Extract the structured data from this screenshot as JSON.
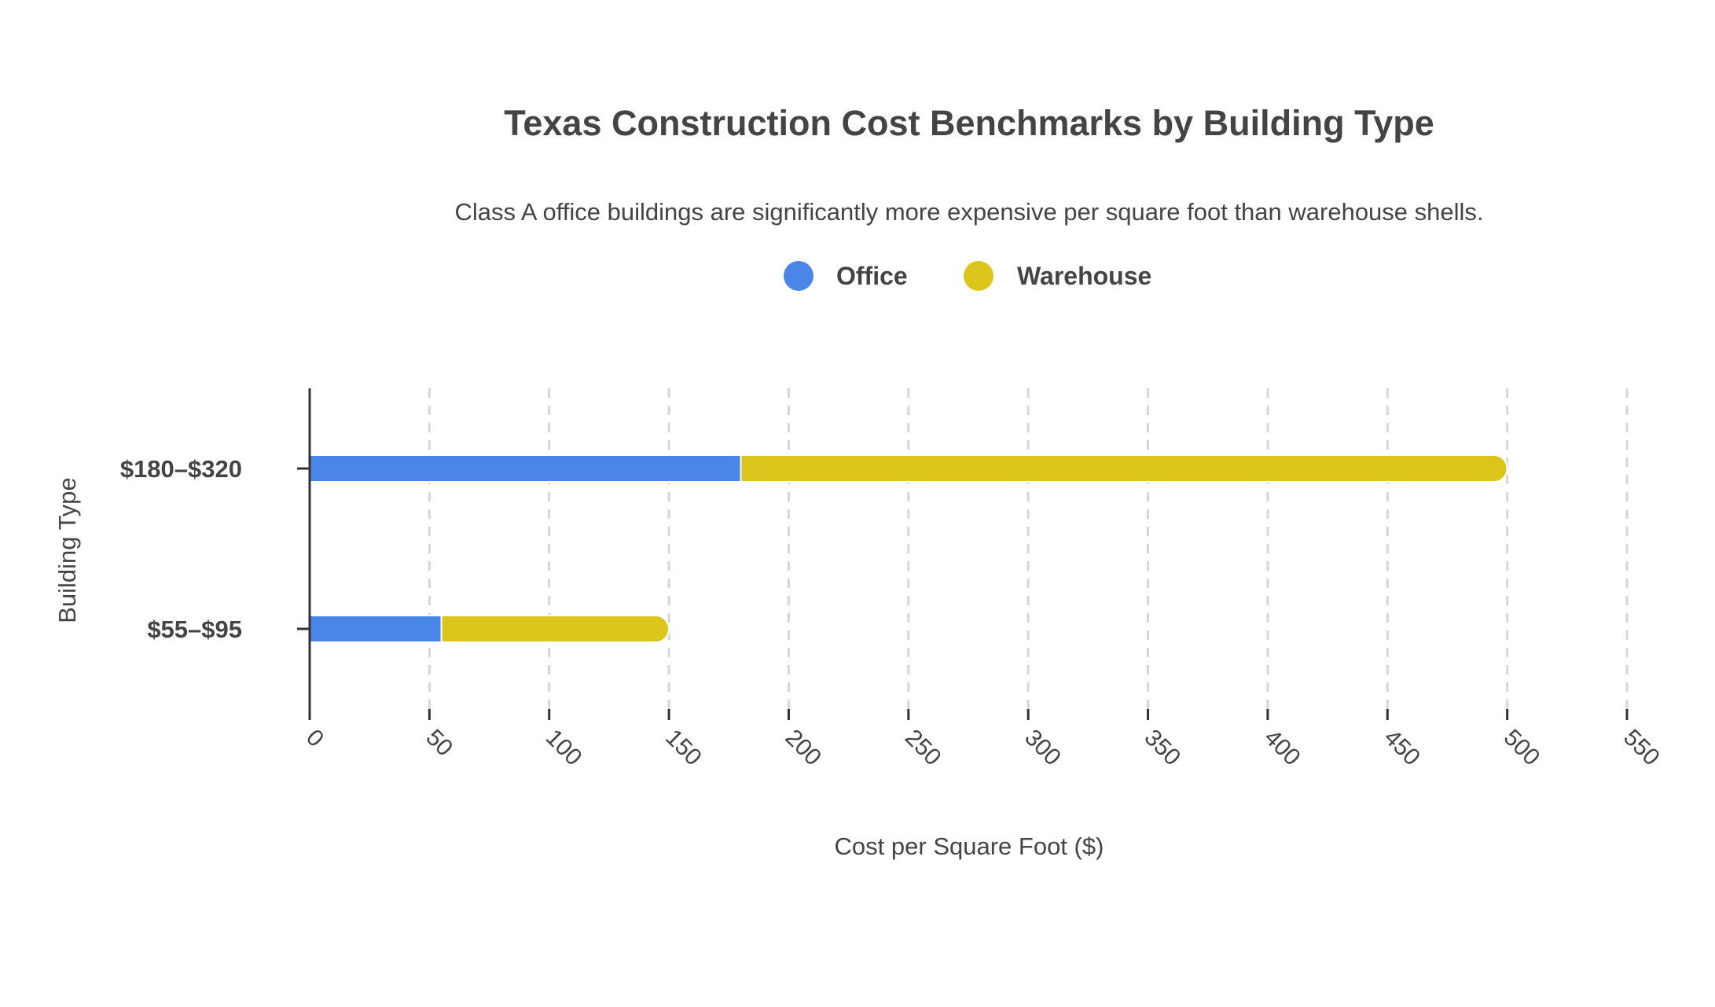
{
  "chart_data": {
    "type": "bar",
    "orientation": "horizontal",
    "stacked": true,
    "title": "Texas Construction Cost Benchmarks by Building Type",
    "subtitle": "Class A office buildings are significantly more expensive per square foot than warehouse shells.",
    "xlabel": "Cost per Square Foot ($)",
    "ylabel": "Building Type",
    "categories": [
      "$180–$320",
      "$55–$95"
    ],
    "series": [
      {
        "name": "Office",
        "color": "#4a86e8",
        "values": [
          180,
          55
        ]
      },
      {
        "name": "Warehouse",
        "color": "#dcc61c",
        "values": [
          320,
          95
        ]
      }
    ],
    "xlim": [
      0,
      550
    ],
    "xticks": [
      "0",
      "50",
      "100",
      "150",
      "200",
      "250",
      "300",
      "350",
      "400",
      "450",
      "500",
      "550"
    ],
    "grid": "vertical-dashed",
    "legend": "top-center"
  }
}
